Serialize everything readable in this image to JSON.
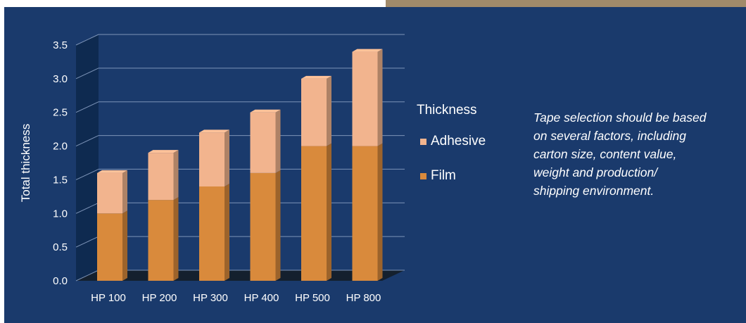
{
  "chart_data": {
    "type": "bar",
    "stacked": true,
    "style": "3d",
    "categories": [
      "HP 100",
      "HP 200",
      "HP 300",
      "HP 400",
      "HP 500",
      "HP 800"
    ],
    "series": [
      {
        "name": "Film",
        "values": [
          1.0,
          1.2,
          1.4,
          1.6,
          2.0,
          2.0
        ]
      },
      {
        "name": "Adhesive",
        "values": [
          0.6,
          0.7,
          0.8,
          0.9,
          1.0,
          1.4
        ]
      }
    ],
    "ylabel": "Total thickness",
    "yticks": [
      "0.0",
      "0.5",
      "1.0",
      "1.5",
      "2.0",
      "2.5",
      "3.0",
      "3.5"
    ],
    "ylim": [
      0,
      3.5
    ],
    "grid": true,
    "legend": {
      "title": "Thickness",
      "placement": "right",
      "entries": [
        "Adhesive",
        "Film"
      ]
    }
  },
  "colors": {
    "background": "#1a3a6c",
    "film": "#d98a3c",
    "adhesive": "#f2b48e",
    "wall": "#0e2a50"
  },
  "note_lines": [
    "Tape selection should be based",
    "on several factors, including",
    "carton size, content value,",
    "weight and production/",
    "shipping environment."
  ]
}
